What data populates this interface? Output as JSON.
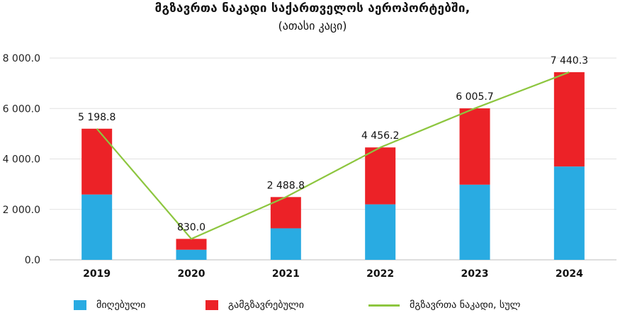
{
  "chart_data": {
    "type": "bar",
    "stacked": true,
    "title": "მგზავრთა ნაკადი საქართველოს აეროპორტებში,",
    "subtitle": "(ათასი კაცი)",
    "categories": [
      "2019",
      "2020",
      "2021",
      "2022",
      "2023",
      "2024"
    ],
    "series": [
      {
        "name": "მიღებული",
        "kind": "bar",
        "color": "#29abe2",
        "values": [
          2590,
          400,
          1250,
          2200,
          2980,
          3700
        ]
      },
      {
        "name": "გამგზავრებული",
        "kind": "bar",
        "color": "#ec2227",
        "values": [
          2608.8,
          430,
          1238.8,
          2256.2,
          3025.7,
          3740.3
        ]
      },
      {
        "name": "მგზავრთა ნაკადი, სულ",
        "kind": "line",
        "color": "#8dc63f",
        "values": [
          5198.8,
          830.0,
          2488.8,
          4456.2,
          6005.7,
          7440.3
        ]
      }
    ],
    "data_labels": [
      "5 198.8",
      "830.0",
      "2 488.8",
      "4 456.2",
      "6 005.7",
      "7 440.3"
    ],
    "ylim": [
      0,
      8000
    ],
    "yticks": [
      0,
      2000,
      4000,
      6000,
      8000
    ],
    "ytick_labels": [
      "0.0",
      "2 000.0",
      "4 000.0",
      "6 000.0",
      "8 000.0"
    ],
    "grid": true,
    "legend": "bottom"
  }
}
